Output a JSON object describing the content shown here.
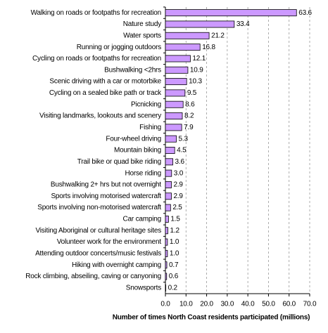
{
  "chart_data": {
    "type": "hbar",
    "x_label": "Number of times North Coast residents participated (millions)",
    "categories": [
      "Walking on roads or footpaths for recreation",
      "Nature study",
      "Water sports",
      "Running or jogging outdoors",
      "Cycling on roads or footpaths for recreation",
      "Bushwalking <2hrs",
      "Scenic driving with a car or motorbike",
      "Cycling on a sealed bike path or track",
      "Picnicking",
      "Visiting landmarks, lookouts and scenery",
      "Fishing",
      "Four-wheel driving",
      "Mountain biking",
      "Trail bike or quad bike riding",
      "Horse riding",
      "Bushwalking 2+ hrs but not overnight",
      "Sports involving motorised watercraft",
      "Sports involving non-motorised watercraft",
      "Car camping",
      "Visiting Aboriginal or cultural heritage sites",
      "Volunteer work for the environment",
      "Attending outdoor concerts/music festivals",
      "Hiking with overnight camping",
      "Rock climbing, abseiling, caving or canyoning",
      "Snowsports"
    ],
    "values": [
      63.6,
      33.4,
      21.2,
      16.8,
      12.1,
      10.9,
      10.3,
      9.5,
      8.6,
      8.2,
      7.9,
      5.3,
      4.5,
      3.6,
      3.0,
      2.9,
      2.9,
      2.5,
      1.5,
      1.2,
      1.0,
      1.0,
      0.7,
      0.6,
      0.2
    ],
    "value_labels": [
      "63.6",
      "33.4",
      "21.2",
      "16.8",
      "12.1",
      "10.9",
      "10.3",
      "9.5",
      "8.6",
      "8.2",
      "7.9",
      "5.3",
      "4.5",
      "3.6",
      "3.0",
      "2.9",
      "2.9",
      "2.5",
      "1.5",
      "1.2",
      "1.0",
      "1.0",
      "0.7",
      "0.6",
      "0.2"
    ],
    "color": "#cc99ff",
    "xlim": [
      0,
      70
    ],
    "xticks": [
      {
        "value": 0,
        "label": "0.0"
      },
      {
        "value": 10,
        "label": "10.0"
      },
      {
        "value": 20,
        "label": "20.0"
      },
      {
        "value": 30,
        "label": "30.0"
      },
      {
        "value": 40,
        "label": "40.0"
      },
      {
        "value": 50,
        "label": "50.0"
      },
      {
        "value": 60,
        "label": "60.0"
      },
      {
        "value": 70,
        "label": "70.0"
      }
    ],
    "grid": true
  }
}
